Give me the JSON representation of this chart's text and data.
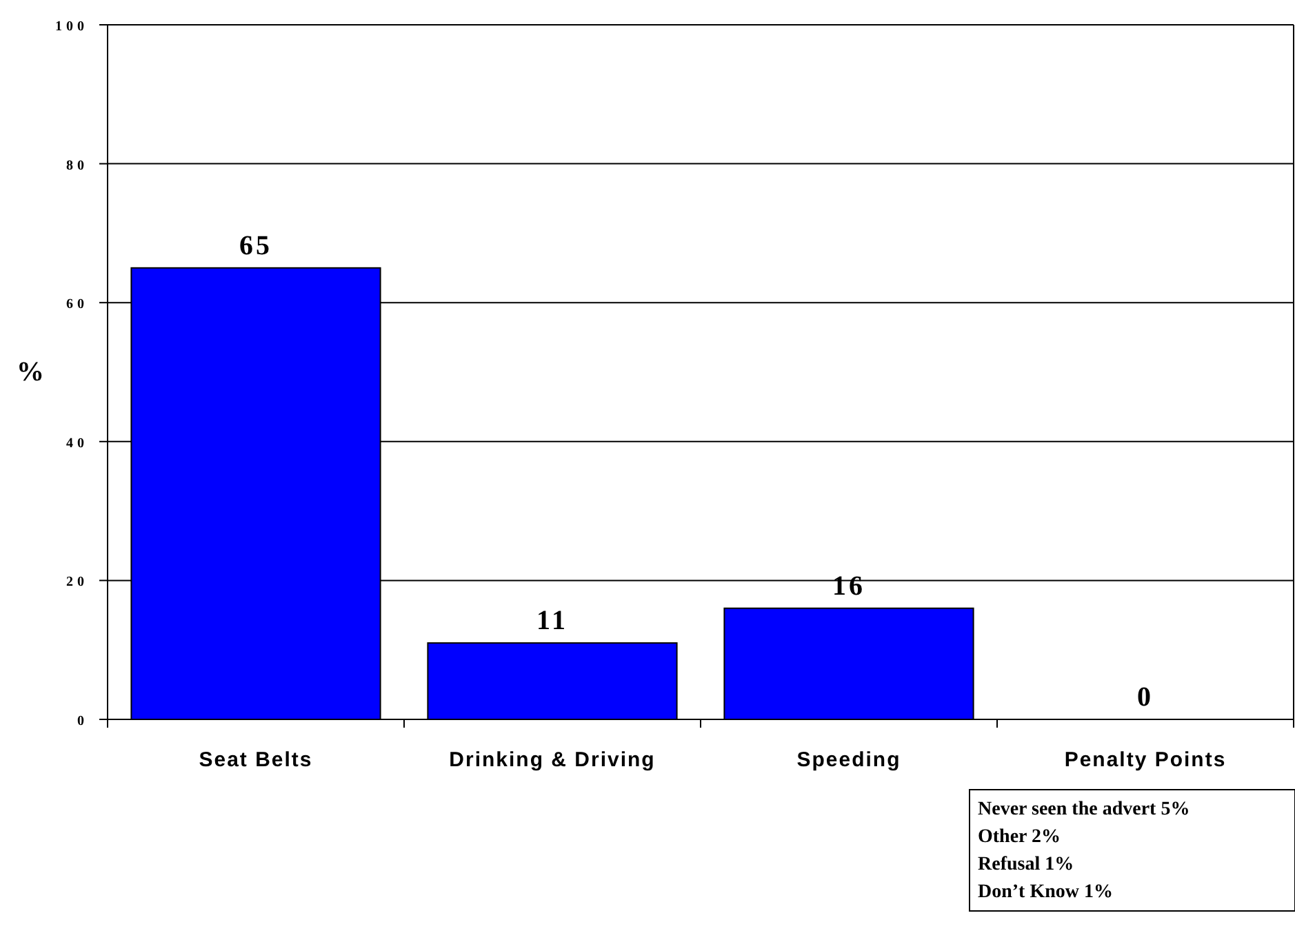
{
  "chart_data": {
    "type": "bar",
    "ylabel": "%",
    "categories": [
      "Seat Belts",
      "Drinking & Driving",
      "Speeding",
      "Penalty Points"
    ],
    "values": [
      65,
      11,
      16,
      0
    ],
    "color": "#0000ff",
    "ylim": [
      0,
      100
    ],
    "yticks": [
      0,
      20,
      40,
      60,
      80,
      100
    ],
    "grid": "y",
    "data_labels": true,
    "annotations": [
      "Never seen the advert 5%",
      "Other 2%",
      "Refusal 1%",
      "Don’t Know 1%"
    ]
  }
}
